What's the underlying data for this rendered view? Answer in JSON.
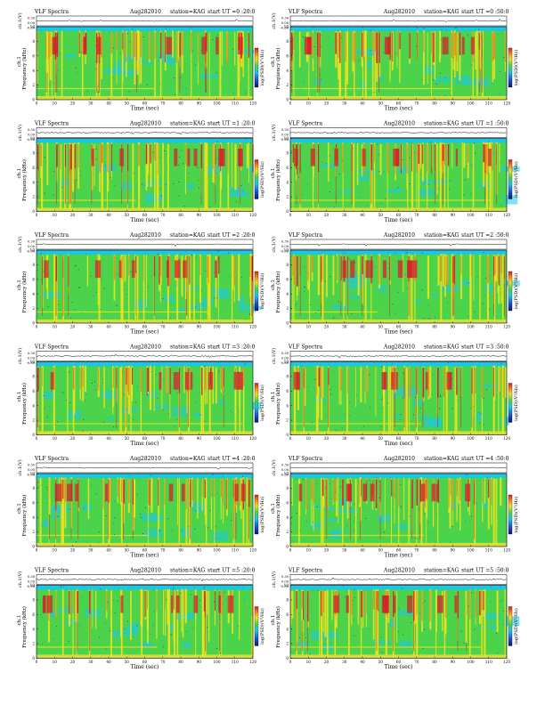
{
  "page": {
    "panel_header": {
      "label": "VLF Spectra",
      "date": "Aug282010",
      "station": "station=KAG",
      "start_prefix": "start  UT"
    },
    "waveform_ylabel": "ch.1(V)",
    "spectrogram_ylabel": "Frequency (kHz)",
    "channel_label": "ch.1",
    "colorbar_label": "log(PSD)(V²/Hz)"
  },
  "chart_data": [
    {
      "type": "heatmap",
      "start_ut": "=0 :20:0",
      "xlabel": "Time (sec)",
      "ylabel": "Frequency (kHz)",
      "xlim": [
        0,
        120
      ],
      "ylim": [
        0,
        10
      ],
      "xticks": [
        0,
        10,
        20,
        30,
        40,
        50,
        60,
        70,
        80,
        90,
        100,
        110,
        120
      ],
      "yticks": [
        0,
        2,
        4,
        6,
        8,
        10
      ],
      "waveform_yticks": [
        "0.30",
        "0.00",
        "-0.30"
      ]
    },
    {
      "type": "heatmap",
      "start_ut": "=0 :50:0",
      "xlabel": "Time (sec)",
      "ylabel": "Frequency (kHz)",
      "xlim": [
        0,
        120
      ],
      "ylim": [
        0,
        10
      ],
      "xticks": [
        0,
        10,
        20,
        30,
        40,
        50,
        60,
        70,
        80,
        90,
        100,
        110,
        120
      ],
      "yticks": [
        0,
        2,
        4,
        6,
        8,
        10
      ],
      "waveform_yticks": [
        "0.30",
        "0.00",
        "-0.30"
      ]
    },
    {
      "type": "heatmap",
      "start_ut": "=1 :20:0",
      "xlabel": "Time (sec)",
      "ylabel": "Frequency (kHz)",
      "xlim": [
        0,
        120
      ],
      "ylim": [
        0,
        10
      ],
      "xticks": [
        0,
        10,
        20,
        30,
        40,
        50,
        60,
        70,
        80,
        90,
        100,
        110,
        120
      ],
      "yticks": [
        0,
        2,
        4,
        6,
        8,
        10
      ],
      "waveform_yticks": [
        "0.30",
        "0.00",
        "-0.30"
      ]
    },
    {
      "type": "heatmap",
      "start_ut": "=1 :50:0",
      "xlabel": "Time (sec)",
      "ylabel": "Frequency (kHz)",
      "xlim": [
        0,
        120
      ],
      "ylim": [
        0,
        10
      ],
      "xticks": [
        0,
        10,
        20,
        30,
        40,
        50,
        60,
        70,
        80,
        90,
        100,
        110,
        120
      ],
      "yticks": [
        0,
        2,
        4,
        6,
        8,
        10
      ],
      "waveform_yticks": [
        "0.30",
        "0.00",
        "-0.30"
      ]
    },
    {
      "type": "heatmap",
      "start_ut": "=2 :20:0",
      "xlabel": "Time (sec)",
      "ylabel": "Frequency (kHz)",
      "xlim": [
        0,
        120
      ],
      "ylim": [
        0,
        10
      ],
      "xticks": [
        0,
        10,
        20,
        30,
        40,
        50,
        60,
        70,
        80,
        90,
        100,
        110,
        120
      ],
      "yticks": [
        0,
        2,
        4,
        6,
        8,
        10
      ],
      "waveform_yticks": [
        "0.30",
        "0.00",
        "-0.30"
      ]
    },
    {
      "type": "heatmap",
      "start_ut": "=2 :50:0",
      "xlabel": "Time (sec)",
      "ylabel": "Frequency (kHz)",
      "xlim": [
        0,
        120
      ],
      "ylim": [
        0,
        10
      ],
      "xticks": [
        0,
        10,
        20,
        30,
        40,
        50,
        60,
        70,
        80,
        90,
        100,
        110,
        120
      ],
      "yticks": [
        0,
        2,
        4,
        6,
        8,
        10
      ],
      "waveform_yticks": [
        "0.30",
        "0.00",
        "-0.30"
      ]
    },
    {
      "type": "heatmap",
      "start_ut": "=3 :20:0",
      "xlabel": "Time (sec)",
      "ylabel": "Frequency (kHz)",
      "xlim": [
        0,
        120
      ],
      "ylim": [
        0,
        10
      ],
      "xticks": [
        0,
        10,
        20,
        30,
        40,
        50,
        60,
        70,
        80,
        90,
        100,
        110,
        120
      ],
      "yticks": [
        0,
        2,
        4,
        6,
        8,
        10
      ],
      "waveform_yticks": [
        "0.30",
        "0.00",
        "-0.30"
      ]
    },
    {
      "type": "heatmap",
      "start_ut": "=3 :50:0",
      "xlabel": "Time (sec)",
      "ylabel": "Frequency (kHz)",
      "xlim": [
        0,
        120
      ],
      "ylim": [
        0,
        10
      ],
      "xticks": [
        0,
        10,
        20,
        30,
        40,
        50,
        60,
        70,
        80,
        90,
        100,
        110,
        120
      ],
      "yticks": [
        0,
        2,
        4,
        6,
        8,
        10
      ],
      "waveform_yticks": [
        "0.30",
        "0.00",
        "-0.30"
      ]
    },
    {
      "type": "heatmap",
      "start_ut": "=4 :20:0",
      "xlabel": "Time (sec)",
      "ylabel": "Frequency (kHz)",
      "xlim": [
        0,
        120
      ],
      "ylim": [
        0,
        10
      ],
      "xticks": [
        0,
        10,
        20,
        30,
        40,
        50,
        60,
        70,
        80,
        90,
        100,
        110,
        120
      ],
      "yticks": [
        0,
        2,
        4,
        6,
        8,
        10
      ],
      "waveform_yticks": [
        "0.30",
        "0.00",
        "-0.30"
      ]
    },
    {
      "type": "heatmap",
      "start_ut": "=4 :50:0",
      "xlabel": "Time (sec)",
      "ylabel": "Frequency (kHz)",
      "xlim": [
        0,
        120
      ],
      "ylim": [
        0,
        10
      ],
      "xticks": [
        0,
        10,
        20,
        30,
        40,
        50,
        60,
        70,
        80,
        90,
        100,
        110,
        120
      ],
      "yticks": [
        0,
        2,
        4,
        6,
        8,
        10
      ],
      "waveform_yticks": [
        "0.30",
        "0.00",
        "-0.30"
      ]
    },
    {
      "type": "heatmap",
      "start_ut": "=5 :20:0",
      "xlabel": "Time (sec)",
      "ylabel": "Frequency (kHz)",
      "xlim": [
        0,
        120
      ],
      "ylim": [
        0,
        10
      ],
      "xticks": [
        0,
        10,
        20,
        30,
        40,
        50,
        60,
        70,
        80,
        90,
        100,
        110,
        120
      ],
      "yticks": [
        0,
        2,
        4,
        6,
        8,
        10
      ],
      "waveform_yticks": [
        "0.30",
        "0.00",
        "-0.30"
      ]
    },
    {
      "type": "heatmap",
      "start_ut": "=5 :50:0",
      "xlabel": "Time (sec)",
      "ylabel": "Frequency (kHz)",
      "xlim": [
        0,
        120
      ],
      "ylim": [
        0,
        10
      ],
      "xticks": [
        0,
        10,
        20,
        30,
        40,
        50,
        60,
        70,
        80,
        90,
        100,
        110,
        120
      ],
      "yticks": [
        0,
        2,
        4,
        6,
        8,
        10
      ],
      "waveform_yticks": [
        "0.30",
        "0.00",
        "-0.30"
      ]
    }
  ],
  "colors": {
    "cyan": "#19c8e6",
    "green": "#4cd34c",
    "yellow": "#f2e21c",
    "orange": "#f08a1c",
    "red": "#d8202a",
    "blue": "#1d4fd8",
    "dark": "#0a1a70"
  }
}
